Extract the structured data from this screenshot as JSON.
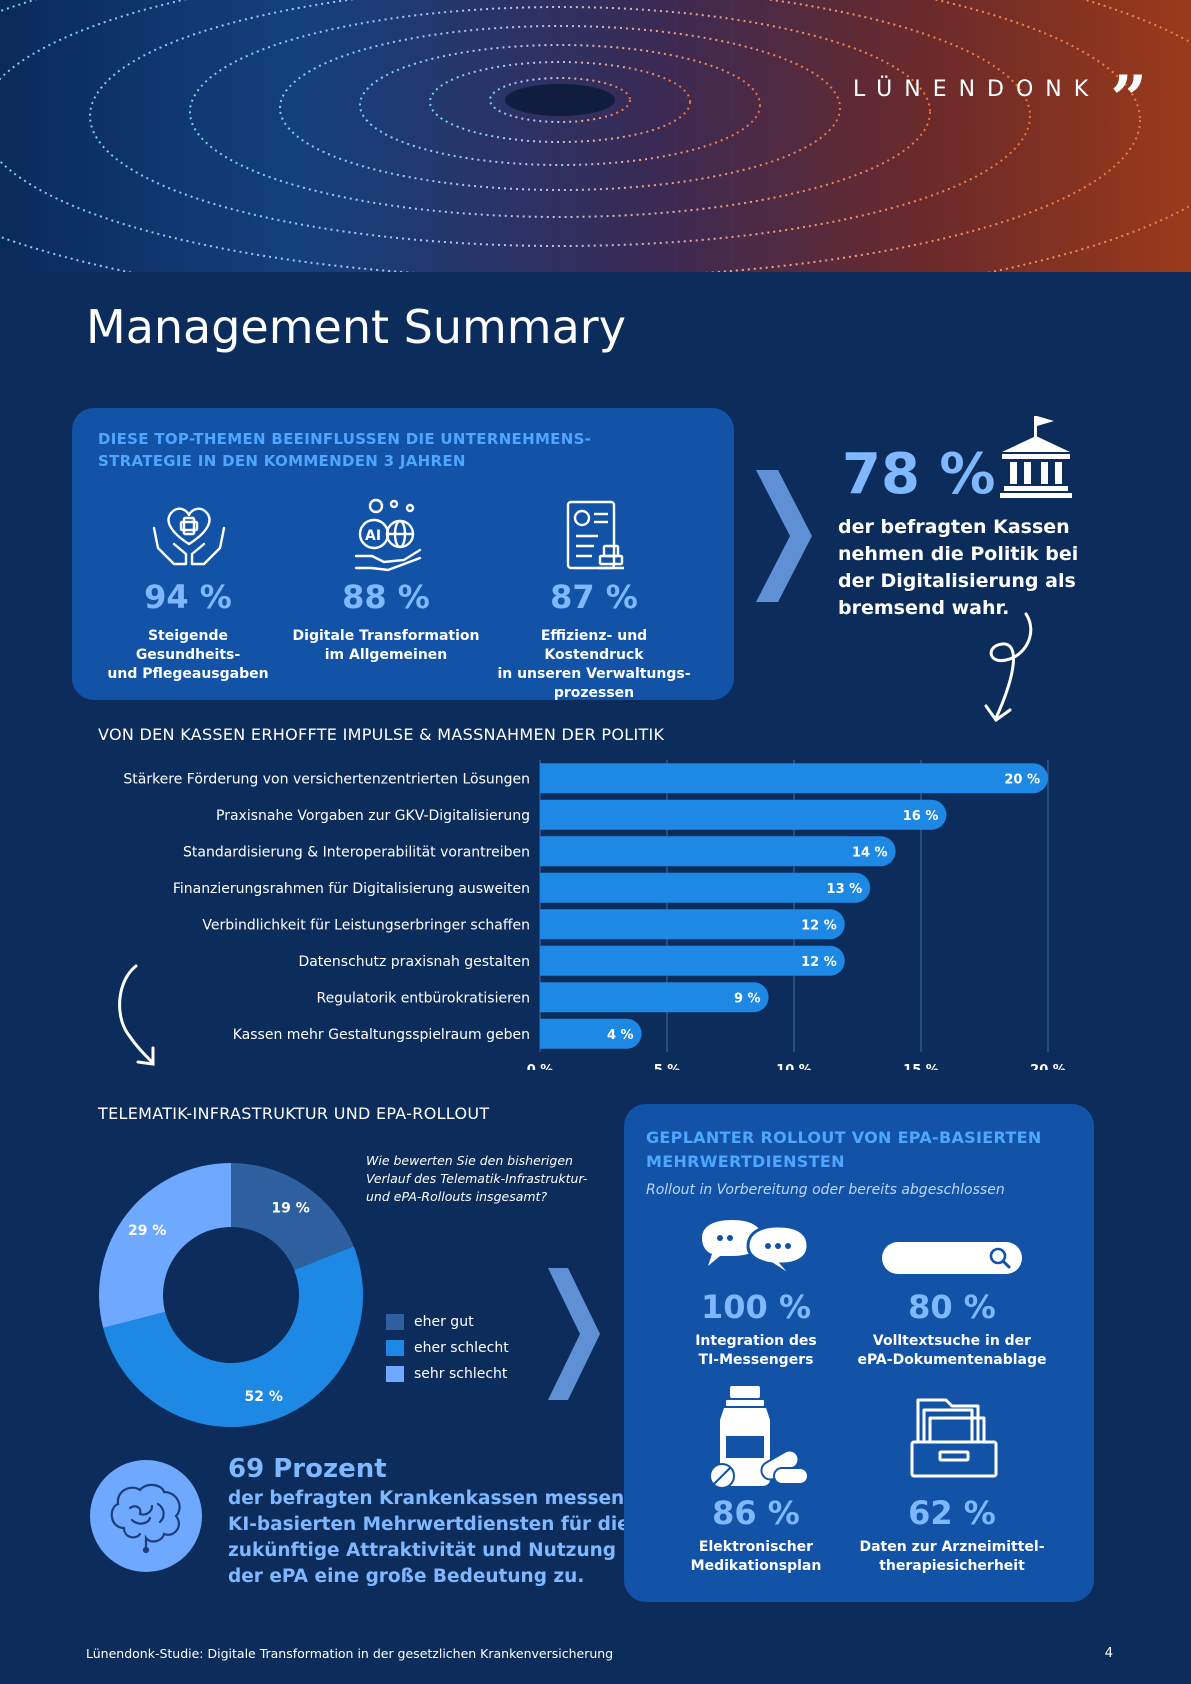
{
  "logo": {
    "text": "LÜNENDONK",
    "mark": "”"
  },
  "title": "Management Summary",
  "top_themes": {
    "heading_line1": "DIESE TOP-THEMEN BEEINFLUSSEN DIE UNTERNEHMENS-",
    "heading_line2": "STRATEGIE IN DEN KOMMENDEN 3 JAHREN",
    "items": [
      {
        "icon": "heart-hands-icon",
        "value": "94 %",
        "label_l1": "Steigende Gesundheits-",
        "label_l2": "und Pflegeausgaben",
        "label_l3": ""
      },
      {
        "icon": "ai-globe-hand-icon",
        "value": "88 %",
        "label_l1": "Digitale Transformation",
        "label_l2": "im Allgemeinen",
        "label_l3": ""
      },
      {
        "icon": "document-stamp-icon",
        "value": "87 %",
        "label_l1": "Effizienz- und Kostendruck",
        "label_l2": "in unseren Verwaltungs-",
        "label_l3": "prozessen"
      }
    ]
  },
  "politics": {
    "value": "78 %",
    "icon": "government-building-icon",
    "text_l1": "der befragten Kassen",
    "text_l2": "nehmen die Politik bei",
    "text_l3": "der Digitalisierung als",
    "text_l4": "bremsend wahr."
  },
  "chart_data": [
    {
      "type": "bar",
      "orientation": "horizontal",
      "title": "VON DEN KASSEN ERHOFFTE IMPULSE & MASSNAHMEN DER POLITIK",
      "categories": [
        "Stärkere Förderung von versichertenzentrierten Lösungen",
        "Praxisnahe Vorgaben zur GKV-Digitalisierung",
        "Standardisierung & Interoperabilität vorantreiben",
        "Finanzierungsrahmen für Digitalisierung ausweiten",
        "Verbindlichkeit für Leistungserbringer schaffen",
        "Datenschutz praxisnah gestalten",
        "Regulatorik entbürokratisieren",
        "Kassen mehr Gestaltungsspielraum geben"
      ],
      "values": [
        20,
        16,
        14,
        13,
        12,
        12,
        9,
        4
      ],
      "value_labels": [
        "20 %",
        "16 %",
        "14 %",
        "13 %",
        "12 %",
        "12 %",
        "9 %",
        "4 %"
      ],
      "xlim": [
        0,
        20
      ],
      "ticks": [
        "0 %",
        "5 %",
        "10 %",
        "15 %",
        "20 %"
      ],
      "grid": true,
      "color": "#1e88e5"
    },
    {
      "type": "pie",
      "variant": "donut",
      "title": "TELEMATIK-INFRASTRUKTUR UND EPA-ROLLOUT",
      "question_l1": "Wie bewerten Sie den bisherigen",
      "question_l2": "Verlauf des Telematik-Infrastruktur-",
      "question_l3": "und ePA-Rollouts insgesamt?",
      "categories": [
        "eher gut",
        "eher schlecht",
        "sehr schlecht"
      ],
      "values": [
        19,
        52,
        29
      ],
      "value_labels": [
        "19 %",
        "52 %",
        "29 %"
      ],
      "colors": [
        "#2e5f9e",
        "#1e88e5",
        "#6fa8ff"
      ],
      "legend": "right"
    }
  ],
  "ki": {
    "icon": "brain-icon",
    "headline": "69 Prozent",
    "text_l1": "der befragten Krankenkassen messen",
    "text_l2": "KI-basierten Mehrwertdiensten für die",
    "text_l3": "zukünftige Attraktivität und Nutzung",
    "text_l4": "der ePA eine große Bedeutung zu."
  },
  "rollout": {
    "heading_l1": "GEPLANTER ROLLOUT VON EPA-BASIERTEN",
    "heading_l2": "MEHRWERTDIENSTEN",
    "subheading": "Rollout in Vorbereitung oder bereits abgeschlossen",
    "items": [
      {
        "icon": "chat-bubbles-icon",
        "value": "100 %",
        "label_l1": "Integration des",
        "label_l2": "TI-Messengers"
      },
      {
        "icon": "search-bar-icon",
        "value": "80 %",
        "label_l1": "Volltextsuche in der",
        "label_l2": "ePA-Dokumentenablage"
      },
      {
        "icon": "medication-icon",
        "value": "86 %",
        "label_l1": "Elektronischer",
        "label_l2": "Medikationsplan"
      },
      {
        "icon": "file-cabinet-icon",
        "value": "62 %",
        "label_l1": "Daten zur Arzneimittel-",
        "label_l2": "therapiesicherheit"
      }
    ]
  },
  "footer": {
    "text": "Lünendonk-Studie: Digitale Transformation in der gesetzlichen Krankenversicherung",
    "page": "4"
  }
}
